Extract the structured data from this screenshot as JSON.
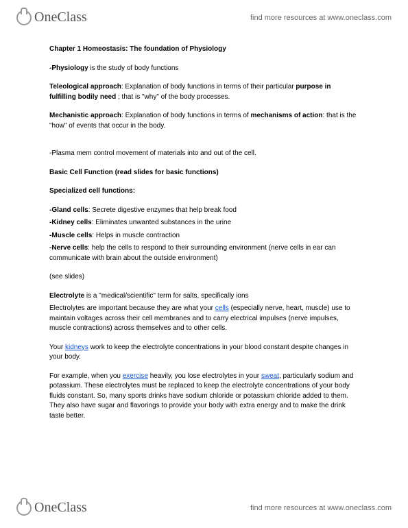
{
  "brand": "OneClass",
  "resources_text": "find more resources at www.oneclass.com",
  "doc": {
    "title": "Chapter 1 Homeostasis: The foundation of Physiology",
    "physiology_def": {
      "label": "-Physiology",
      "text": " is the study of body functions"
    },
    "teleological": {
      "label": "Teleological approach",
      "text1": ": Explanation of body functions in terms of their particular ",
      "bold2": "purpose in fulfilling bodily need",
      "text2": " ; that is \"why\" of the body processes."
    },
    "mechanistic": {
      "label": "Mechanistic approach",
      "text1": ": Explanation of body functions in terms of ",
      "bold2": "mechanisms of action",
      "text2": ": that is the \"how\" of events that occur in the body."
    },
    "plasma": "-Plasma mem control movement of materials into and out of the cell.",
    "basic_cell": {
      "label": "Basic Cell Function",
      "text": " (read slides for basic functions)"
    },
    "specialized_heading": "Specialized cell functions:",
    "cells": {
      "gland": {
        "label": "-Gland cells",
        "text": ": Secrete digestive enzymes that help break food"
      },
      "kidney": {
        "label": "-Kidney cells",
        "text": ": Eliminates unwanted substances in the urine"
      },
      "muscle": {
        "label": "-Muscle cells",
        "text": ": Helps in muscle contraction"
      },
      "nerve": {
        "label": "-Nerve cells",
        "text": ": help the cells to respond to their surrounding environment (nerve cells in ear can communicate with brain about the outside environment)"
      }
    },
    "see_slides": " (see slides)",
    "electrolyte": {
      "label": "Electrolyte",
      "def": " is a \"medical/scientific\" term for salts, specifically ions",
      "p2a": "Electrolytes are important because they are what your ",
      "link_cells": "cells",
      "p2b": " (especially nerve, heart, muscle) use to maintain voltages across their cell membranes and to carry electrical impulses (nerve impulses, muscle contractions) across themselves and to other cells."
    },
    "kidneys_p": {
      "a": "Your ",
      "link": "kidneys",
      "b": " work to keep the electrolyte concentrations in your blood constant despite changes in your body."
    },
    "example": {
      "a": "For example, when you ",
      "link1": "exercise",
      "b": " heavily, you lose electrolytes in your ",
      "link2": "sweat",
      "c": ", particularly sodium and potassium. These electrolytes must be replaced to keep the electrolyte concentrations of your body fluids constant. So, many sports drinks have sodium chloride or potassium chloride added to them. They also have sugar and flavorings to provide your body with extra energy and to make the drink taste better."
    }
  }
}
